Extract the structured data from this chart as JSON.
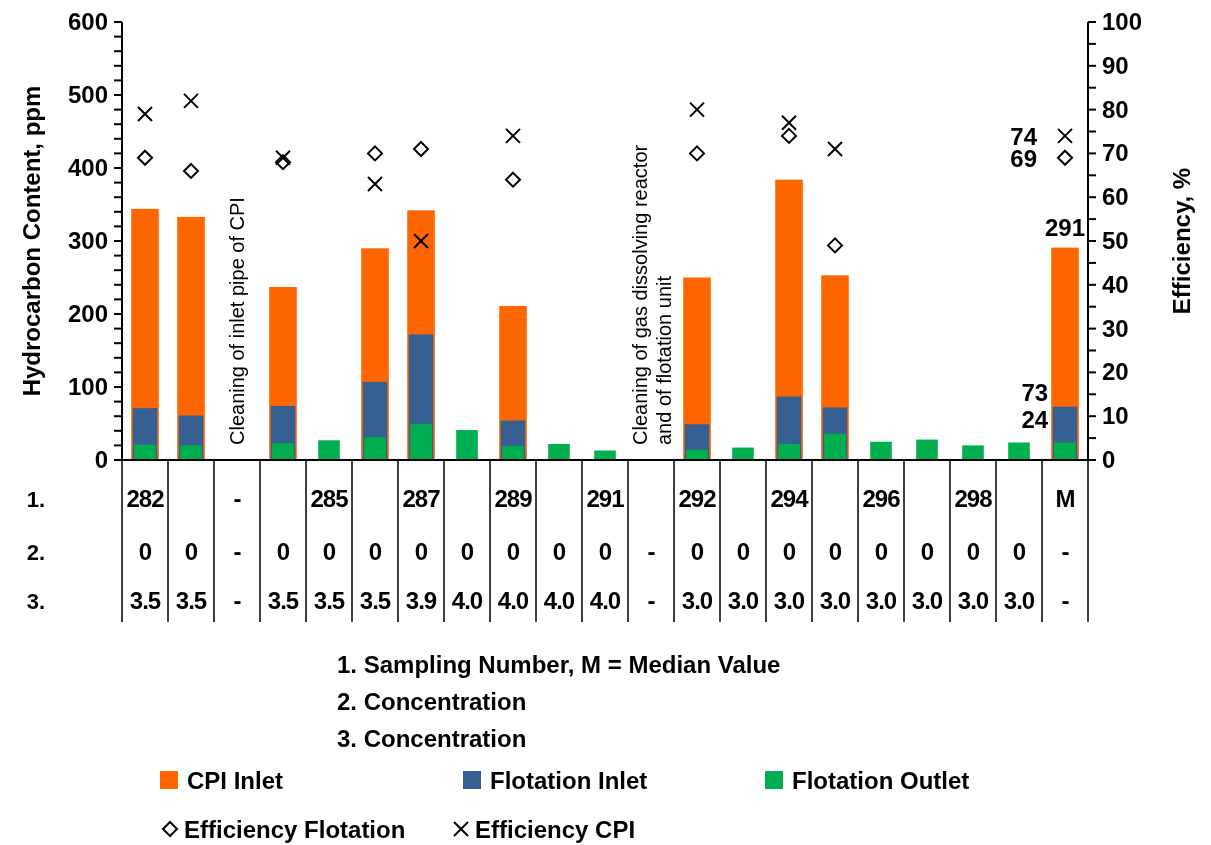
{
  "chart_data": {
    "type": "bar",
    "categories": [
      "282\n0\n3.5",
      "\n0\n3.5",
      "-\n-\n-",
      "\n0\n3.5",
      "285\n0\n3.5",
      "\n0\n3.5",
      "287\n0\n3.9",
      "\n0\n4.0",
      "289\n0\n4.0",
      "\n0\n4.0",
      "291\n0\n4.0",
      "\n-\n-",
      "292\n0\n3.0",
      "\n0\n3.0",
      "294\n0\n3.0",
      "\n0\n3.0",
      "296\n0\n3.0",
      "\n0\n3.0",
      "298\n0\n3.0",
      "\n0\n3.0",
      "M\n-\n-"
    ],
    "series": [
      {
        "name": "CPI Inlet",
        "color": "#ff6600",
        "values": [
          344,
          333,
          null,
          237,
          null,
          290,
          342,
          null,
          211,
          null,
          null,
          null,
          250,
          null,
          384,
          253,
          null,
          null,
          null,
          null,
          291
        ],
        "value_labels": [
          null,
          null,
          null,
          null,
          null,
          null,
          null,
          null,
          null,
          null,
          null,
          null,
          null,
          null,
          null,
          null,
          null,
          null,
          null,
          null,
          "291"
        ]
      },
      {
        "name": "Flotation Inlet",
        "color": "#376092",
        "values": [
          71,
          61,
          null,
          74,
          null,
          107,
          172,
          null,
          54,
          null,
          null,
          null,
          49,
          null,
          87,
          72,
          null,
          null,
          null,
          null,
          73
        ],
        "value_labels": [
          null,
          null,
          null,
          null,
          null,
          null,
          null,
          null,
          null,
          null,
          null,
          null,
          null,
          null,
          null,
          null,
          null,
          null,
          null,
          null,
          "73"
        ]
      },
      {
        "name": "Flotation Outlet",
        "color": "#00b050",
        "values": [
          21,
          20,
          null,
          23,
          27,
          31,
          49,
          41,
          19,
          22,
          13,
          null,
          14,
          17,
          22,
          36,
          25,
          28,
          20,
          24,
          24
        ],
        "value_labels": [
          null,
          null,
          null,
          null,
          null,
          null,
          null,
          null,
          null,
          null,
          null,
          null,
          null,
          null,
          null,
          null,
          null,
          null,
          null,
          null,
          "24"
        ]
      },
      {
        "name": "Efficiency Flotation",
        "type": "scatter",
        "axis": "y2",
        "marker": "diamond",
        "color": "#000000",
        "values": [
          69,
          66,
          null,
          68,
          null,
          70,
          71,
          null,
          64,
          null,
          null,
          null,
          70,
          null,
          74,
          49,
          null,
          null,
          null,
          null,
          69
        ],
        "value_labels": [
          null,
          null,
          null,
          null,
          null,
          null,
          null,
          null,
          null,
          null,
          null,
          null,
          null,
          null,
          null,
          null,
          null,
          null,
          null,
          null,
          "69"
        ]
      },
      {
        "name": "Efficiency CPI",
        "type": "scatter",
        "axis": "y2",
        "marker": "cross",
        "color": "#000000",
        "values": [
          79,
          82,
          null,
          69,
          null,
          63,
          50,
          null,
          74,
          null,
          null,
          null,
          80,
          null,
          77,
          71,
          null,
          null,
          null,
          null,
          74
        ],
        "value_labels": [
          null,
          null,
          null,
          null,
          null,
          null,
          null,
          null,
          null,
          null,
          null,
          null,
          null,
          null,
          null,
          null,
          null,
          null,
          null,
          null,
          "74"
        ]
      }
    ],
    "ylabel": "Hydrocarbon Content, ppm",
    "y2label": "Efficiency, %",
    "ylim": [
      0,
      600
    ],
    "yticks": [
      0,
      {
        "value": 20,
        "label": null
      },
      {
        "value": 40,
        "label": null
      },
      {
        "value": 60,
        "label": null
      },
      {
        "value": 80,
        "label": null
      },
      100,
      {
        "value": 120,
        "label": null
      },
      {
        "value": 140,
        "label": null
      },
      {
        "value": 160,
        "label": null
      },
      {
        "value": 180,
        "label": null
      },
      200,
      {
        "value": 220,
        "label": null
      },
      {
        "value": 240,
        "label": null
      },
      {
        "value": 260,
        "label": null
      },
      {
        "value": 280,
        "label": null
      },
      300,
      {
        "value": 320,
        "label": null
      },
      {
        "value": 340,
        "label": null
      },
      {
        "value": 360,
        "label": null
      },
      {
        "value": 380,
        "label": null
      },
      400,
      {
        "value": 420,
        "label": null
      },
      {
        "value": 440,
        "label": null
      },
      {
        "value": 460,
        "label": null
      },
      {
        "value": 480,
        "label": null
      },
      500,
      {
        "value": 520,
        "label": null
      },
      {
        "value": 540,
        "label": null
      },
      {
        "value": 560,
        "label": null
      },
      {
        "value": 580,
        "label": null
      },
      600
    ],
    "y2lim": [
      0,
      100
    ],
    "y2ticks": [
      0,
      {
        "value": 5,
        "label": null
      },
      10,
      {
        "value": 15,
        "label": null
      },
      20,
      {
        "value": 25,
        "label": null
      },
      30,
      {
        "value": 35,
        "label": null
      },
      40,
      {
        "value": 45,
        "label": null
      },
      50,
      {
        "value": 55,
        "label": null
      },
      60,
      {
        "value": 65,
        "label": null
      },
      70,
      {
        "value": 75,
        "label": null
      },
      80,
      {
        "value": 85,
        "label": null
      },
      90,
      {
        "value": 95,
        "label": null
      },
      100
    ],
    "annotations": [
      "Cleaning of inlet pipe of CPI",
      "Cleaning of gas dissolving reactor\nand of flotation unit",
      "1.",
      "2.",
      "3.",
      "1. Sampling Number, M = Median Value",
      "2. Concentration",
      "3. Concentration"
    ],
    "legend": "bottom",
    "grid": false
  }
}
